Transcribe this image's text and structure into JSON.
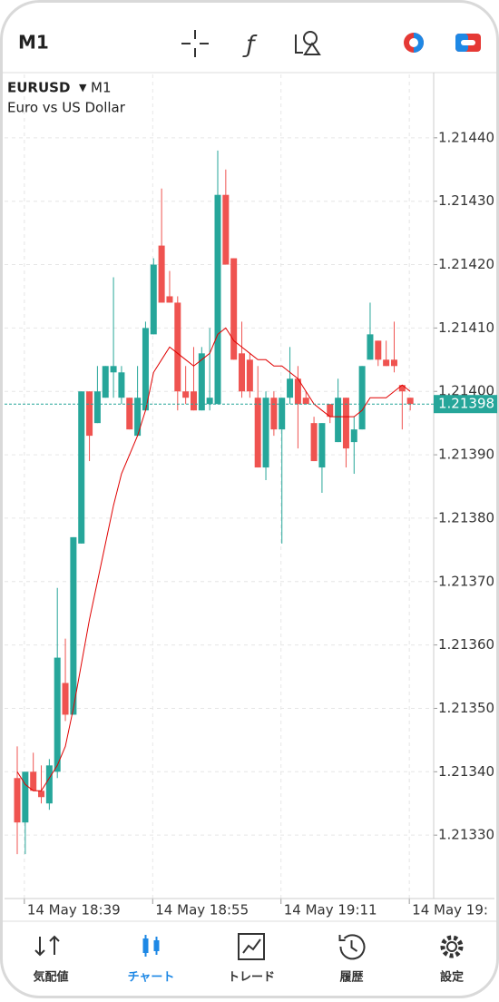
{
  "header": {
    "timeframe": "M1"
  },
  "symbol": {
    "name": "EURUSD",
    "timeframe": "M1",
    "description": "Euro vs US Dollar"
  },
  "chart_data": {
    "type": "candlestick",
    "categories": [
      null,
      "14 May 18:39",
      null,
      null,
      null,
      null,
      null,
      null,
      null,
      null,
      null,
      null,
      null,
      null,
      null,
      null,
      null,
      "14 May 18:55",
      null,
      null,
      null,
      null,
      null,
      null,
      null,
      null,
      null,
      null,
      null,
      null,
      null,
      null,
      null,
      "14 May 19:11",
      null,
      null,
      null,
      null,
      null,
      null,
      null,
      null,
      null,
      null,
      null,
      null,
      null,
      null,
      null,
      "14 May 19:"
    ],
    "open": [
      1.21339,
      1.21332,
      1.2134,
      1.21337,
      1.21335,
      1.2134,
      1.21354,
      1.21349,
      1.21376,
      1.214,
      1.21395,
      1.21399,
      1.21403,
      1.21399,
      1.21399,
      1.21393,
      1.21397,
      1.21409,
      1.21423,
      1.21415,
      1.21414,
      1.214,
      1.214,
      1.21397,
      1.21398,
      1.21398,
      1.21431,
      1.21421,
      1.21406,
      1.21405,
      1.21399,
      1.21388,
      1.21399,
      1.21394,
      1.21399,
      1.21402,
      1.21399,
      1.21395,
      1.21388,
      1.21398,
      1.21392,
      1.21399,
      1.21392,
      1.21394,
      1.21405,
      1.21408,
      1.21405,
      1.21405,
      1.21401,
      1.21399
    ],
    "high": [
      1.21344,
      1.2134,
      1.21343,
      1.21341,
      1.21342,
      1.21369,
      1.21361,
      1.21377,
      1.214,
      1.214,
      1.21404,
      1.21404,
      1.21418,
      1.21404,
      1.21399,
      1.21404,
      1.21411,
      1.21421,
      1.21432,
      1.21419,
      1.21415,
      1.21404,
      1.21407,
      1.21407,
      1.2141,
      1.21438,
      1.21435,
      1.21421,
      1.21411,
      1.21406,
      1.21404,
      1.214,
      1.214,
      1.21399,
      1.21407,
      1.21404,
      1.214,
      1.21396,
      1.21395,
      1.21398,
      1.21402,
      1.21399,
      1.21396,
      1.21404,
      1.21414,
      1.21408,
      1.21408,
      1.21411,
      1.21401,
      1.21399
    ],
    "low": [
      1.21327,
      1.21327,
      1.21337,
      1.21335,
      1.21334,
      1.21339,
      1.21348,
      1.21349,
      1.21376,
      1.21389,
      1.21395,
      1.21399,
      1.21399,
      1.21398,
      1.21394,
      1.21393,
      1.21397,
      1.21409,
      1.21414,
      1.21414,
      1.21397,
      1.21398,
      1.21397,
      1.21397,
      1.21397,
      1.21398,
      1.2142,
      1.21405,
      1.21399,
      1.21399,
      1.21388,
      1.21386,
      1.21393,
      1.21376,
      1.21398,
      1.21391,
      1.21398,
      1.21389,
      1.21384,
      1.21395,
      1.21392,
      1.21388,
      1.21387,
      1.21394,
      1.21405,
      1.21404,
      1.21404,
      1.21403,
      1.21394,
      1.21397
    ],
    "close": [
      1.21332,
      1.2134,
      1.21337,
      1.21336,
      1.21341,
      1.21358,
      1.21349,
      1.21377,
      1.214,
      1.21393,
      1.214,
      1.21404,
      1.21404,
      1.21403,
      1.21394,
      1.21399,
      1.2141,
      1.2142,
      1.21414,
      1.21414,
      1.214,
      1.21399,
      1.21397,
      1.21406,
      1.21399,
      1.21431,
      1.2142,
      1.21405,
      1.214,
      1.214,
      1.21388,
      1.21399,
      1.21394,
      1.21399,
      1.21402,
      1.21398,
      1.21398,
      1.21389,
      1.21395,
      1.21396,
      1.21399,
      1.21391,
      1.21394,
      1.21404,
      1.21409,
      1.21405,
      1.21404,
      1.21404,
      1.214,
      1.21398
    ],
    "up_color": "#26a69a",
    "down_color": "#ef5350",
    "moving_average": {
      "color": "#e00000",
      "values": [
        1.2134,
        1.21338,
        1.21337,
        1.21337,
        1.21339,
        1.21341,
        1.21344,
        1.2135,
        1.21357,
        1.21364,
        1.2137,
        1.21376,
        1.21382,
        1.21387,
        1.2139,
        1.21393,
        1.21397,
        1.21403,
        1.21405,
        1.21407,
        1.21406,
        1.21405,
        1.21404,
        1.21405,
        1.21406,
        1.21409,
        1.2141,
        1.21408,
        1.21407,
        1.21406,
        1.21405,
        1.21405,
        1.21404,
        1.21404,
        1.21403,
        1.21402,
        1.214,
        1.21398,
        1.21397,
        1.21396,
        1.21396,
        1.21396,
        1.21396,
        1.21397,
        1.21399,
        1.21399,
        1.21399,
        1.214,
        1.21401,
        1.214
      ]
    },
    "last_price": 1.21398,
    "last_price_color": "#26a69a",
    "ylim": [
      1.2132,
      1.2145
    ],
    "yticks": [
      {
        "value": 1.2144,
        "label": "1.21440"
      },
      {
        "value": 1.2143,
        "label": "1.21430"
      },
      {
        "value": 1.2142,
        "label": "1.21420"
      },
      {
        "value": 1.2141,
        "label": "1.21410"
      },
      {
        "value": 1.214,
        "label": "1.21400"
      },
      {
        "value": 1.2139,
        "label": "1.21390"
      },
      {
        "value": 1.2138,
        "label": "1.21380"
      },
      {
        "value": 1.2137,
        "label": "1.21370"
      },
      {
        "value": 1.2136,
        "label": "1.21360"
      },
      {
        "value": 1.2135,
        "label": "1.21350"
      },
      {
        "value": 1.2134,
        "label": "1.21340"
      },
      {
        "value": 1.2133,
        "label": "1.21330"
      }
    ],
    "grid": true
  },
  "tabs": [
    {
      "label": "気配値"
    },
    {
      "label": "チャート"
    },
    {
      "label": "トレード"
    },
    {
      "label": "履歴"
    },
    {
      "label": "設定"
    }
  ],
  "active_tab": 1
}
